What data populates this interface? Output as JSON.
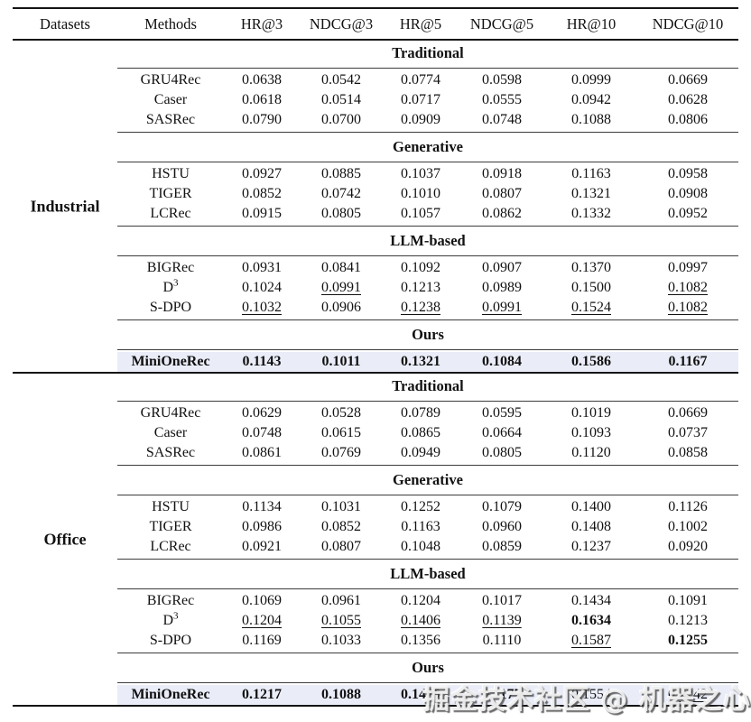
{
  "page": {
    "watermark": "掘金技术社区 @ 机器之心"
  },
  "table": {
    "columns": [
      "Datasets",
      "Methods",
      "HR@3",
      "NDCG@3",
      "HR@5",
      "NDCG@5",
      "HR@10",
      "NDCG@10"
    ],
    "highlight_color": "#eaedf8",
    "datasets": [
      {
        "name": "Industrial",
        "sections": [
          {
            "label": "Traditional",
            "rows": [
              {
                "method": "GRU4Rec",
                "values": [
                  "0.0638",
                  "0.0542",
                  "0.0774",
                  "0.0598",
                  "0.0999",
                  "0.0669"
                ]
              },
              {
                "method": "Caser",
                "values": [
                  "0.0618",
                  "0.0514",
                  "0.0717",
                  "0.0555",
                  "0.0942",
                  "0.0628"
                ]
              },
              {
                "method": "SASRec",
                "values": [
                  "0.0790",
                  "0.0700",
                  "0.0909",
                  "0.0748",
                  "0.1088",
                  "0.0806"
                ]
              }
            ]
          },
          {
            "label": "Generative",
            "rows": [
              {
                "method": "HSTU",
                "values": [
                  "0.0927",
                  "0.0885",
                  "0.1037",
                  "0.0918",
                  "0.1163",
                  "0.0958"
                ]
              },
              {
                "method": "TIGER",
                "values": [
                  "0.0852",
                  "0.0742",
                  "0.1010",
                  "0.0807",
                  "0.1321",
                  "0.0908"
                ]
              },
              {
                "method": "LCRec",
                "values": [
                  "0.0915",
                  "0.0805",
                  "0.1057",
                  "0.0862",
                  "0.1332",
                  "0.0952"
                ]
              }
            ]
          },
          {
            "label": "LLM-based",
            "rows": [
              {
                "method": "BIGRec",
                "values": [
                  "0.0931",
                  "0.0841",
                  "0.1092",
                  "0.0907",
                  "0.1370",
                  "0.0997"
                ]
              },
              {
                "method": "D",
                "method_sup": "3",
                "values": [
                  "0.1024",
                  "0.0991",
                  "0.1213",
                  "0.0989",
                  "0.1500",
                  "0.1082"
                ],
                "styles": [
                  "",
                  "u",
                  "",
                  "",
                  "",
                  "u"
                ]
              },
              {
                "method": "S-DPO",
                "values": [
                  "0.1032",
                  "0.0906",
                  "0.1238",
                  "0.0991",
                  "0.1524",
                  "0.1082"
                ],
                "styles": [
                  "u",
                  "",
                  "u",
                  "u",
                  "u",
                  "u"
                ]
              }
            ]
          },
          {
            "label": "Ours",
            "rows": [
              {
                "method": "MiniOneRec",
                "highlight": true,
                "values": [
                  "0.1143",
                  "0.1011",
                  "0.1321",
                  "0.1084",
                  "0.1586",
                  "0.1167"
                ],
                "styles": [
                  "b",
                  "b",
                  "b",
                  "b",
                  "b",
                  "b"
                ]
              }
            ]
          }
        ]
      },
      {
        "name": "Office",
        "sections": [
          {
            "label": "Traditional",
            "rows": [
              {
                "method": "GRU4Rec",
                "values": [
                  "0.0629",
                  "0.0528",
                  "0.0789",
                  "0.0595",
                  "0.1019",
                  "0.0669"
                ]
              },
              {
                "method": "Caser",
                "values": [
                  "0.0748",
                  "0.0615",
                  "0.0865",
                  "0.0664",
                  "0.1093",
                  "0.0737"
                ]
              },
              {
                "method": "SASRec",
                "values": [
                  "0.0861",
                  "0.0769",
                  "0.0949",
                  "0.0805",
                  "0.1120",
                  "0.0858"
                ]
              }
            ]
          },
          {
            "label": "Generative",
            "rows": [
              {
                "method": "HSTU",
                "values": [
                  "0.1134",
                  "0.1031",
                  "0.1252",
                  "0.1079",
                  "0.1400",
                  "0.1126"
                ]
              },
              {
                "method": "TIGER",
                "values": [
                  "0.0986",
                  "0.0852",
                  "0.1163",
                  "0.0960",
                  "0.1408",
                  "0.1002"
                ]
              },
              {
                "method": "LCRec",
                "values": [
                  "0.0921",
                  "0.0807",
                  "0.1048",
                  "0.0859",
                  "0.1237",
                  "0.0920"
                ]
              }
            ]
          },
          {
            "label": "LLM-based",
            "rows": [
              {
                "method": "BIGRec",
                "values": [
                  "0.1069",
                  "0.0961",
                  "0.1204",
                  "0.1017",
                  "0.1434",
                  "0.1091"
                ]
              },
              {
                "method": "D",
                "method_sup": "3",
                "values": [
                  "0.1204",
                  "0.1055",
                  "0.1406",
                  "0.1139",
                  "0.1634",
                  "0.1213"
                ],
                "styles": [
                  "u",
                  "u",
                  "u",
                  "u",
                  "b",
                  ""
                ]
              },
              {
                "method": "S-DPO",
                "values": [
                  "0.1169",
                  "0.1033",
                  "0.1356",
                  "0.1110",
                  "0.1587",
                  "0.1255"
                ],
                "styles": [
                  "",
                  "",
                  "",
                  "",
                  "u",
                  "b"
                ]
              }
            ]
          },
          {
            "label": "Ours",
            "rows": [
              {
                "method": "MiniOneRec",
                "highlight": true,
                "values": [
                  "0.1217",
                  "0.1088",
                  "0.1420",
                  "0.1177",
                  "0.1554",
                  "0.1242"
                ],
                "styles": [
                  "b",
                  "b",
                  "b",
                  "b",
                  "",
                  "u"
                ]
              }
            ]
          }
        ]
      }
    ]
  }
}
